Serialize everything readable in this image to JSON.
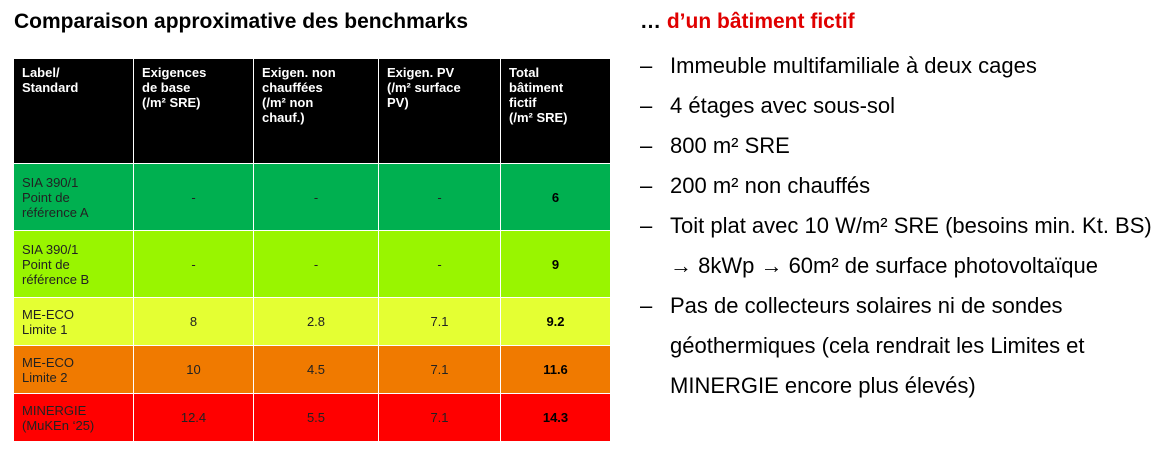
{
  "left": {
    "title": "Comparaison approximative des benchmarks",
    "table": {
      "header": [
        "Label/\nStandard",
        "Exigences\nde base\n(/m² SRE)",
        "Exigen. non\nchauffées\n(/m² non\nchauf.)",
        "Exigen. PV\n(/m² surface\nPV)",
        "Total\nbâtiment\nfictif\n(/m² SRE)"
      ],
      "rows": [
        {
          "color": "#00b050",
          "cells": [
            "SIA 390/1\nPoint de\nréférence A",
            "-",
            "-",
            "-",
            6
          ]
        },
        {
          "color": "#99f500",
          "cells": [
            "SIA 390/1\nPoint de\nréférence B",
            "-",
            "-",
            "-",
            9
          ]
        },
        {
          "color": "#e4ff33",
          "cells": [
            "ME-ECO\nLimite 1",
            8,
            2.8,
            7.1,
            9.2
          ]
        },
        {
          "color": "#f07a00",
          "cells": [
            "ME-ECO\nLimite 2",
            10,
            4.5,
            7.1,
            11.6
          ]
        },
        {
          "color": "#ff0000",
          "cells": [
            "MINERGIE\n(MuKEn ‘25)",
            12.4,
            5.5,
            7.1,
            14.3
          ]
        }
      ]
    }
  },
  "right": {
    "heading_prefix": "…",
    "heading": "d’un bâtiment fictif",
    "bullets": [
      "Immeuble multifamiliale à deux cages",
      "4 étages avec sous-sol",
      "800 m² SRE",
      "200 m² non chauffés",
      "Toit plat avec 10 W/m² SRE (besoins min. Kt. BS) → 8kWp → 60m² de surface photovoltaïque",
      "Pas de collecteurs solaires ni de sondes géothermiques (cela rendrait les Limites et MINERGIE encore plus élevés)"
    ]
  }
}
